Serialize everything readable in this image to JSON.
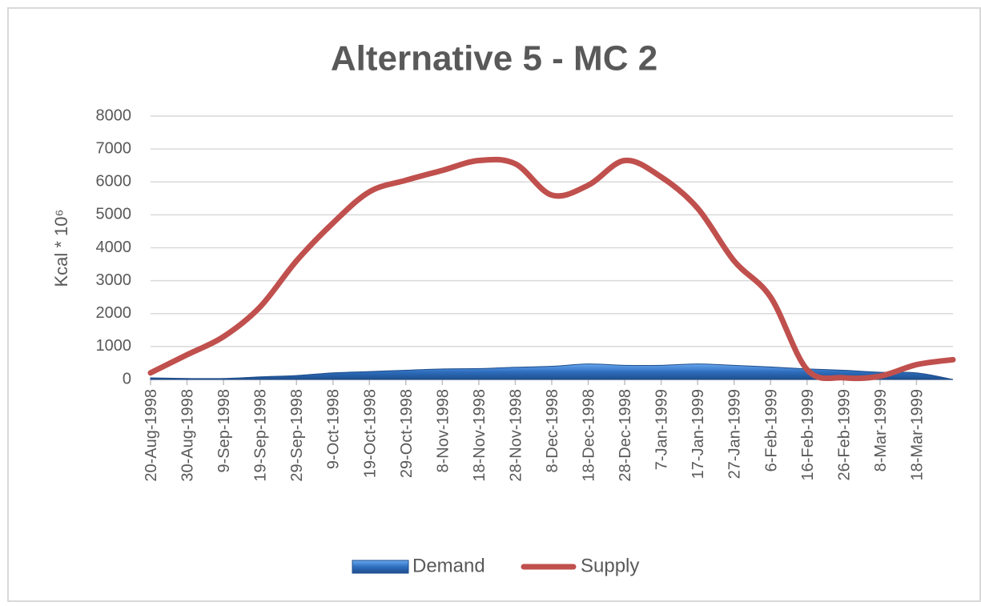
{
  "chart_data": {
    "type": "line",
    "title": "Alternative 5 - MC 2",
    "y_label": "Kcal * 10⁶",
    "categories": [
      "20-Aug-1998",
      "30-Aug-1998",
      "9-Sep-1998",
      "19-Sep-1998",
      "29-Sep-1998",
      "9-Oct-1998",
      "19-Oct-1998",
      "29-Oct-1998",
      "8-Nov-1998",
      "18-Nov-1998",
      "28-Nov-1998",
      "8-Dec-1998",
      "18-Dec-1998",
      "28-Dec-1998",
      "7-Jan-1999",
      "17-Jan-1999",
      "27-Jan-1999",
      "6-Feb-1999",
      "16-Feb-1999",
      "26-Feb-1999",
      "8-Mar-1999",
      "18-Mar-1999",
      null
    ],
    "series": [
      {
        "name": "Demand",
        "color": "#3f7fcf",
        "style": "area",
        "values": [
          50,
          30,
          30,
          80,
          120,
          200,
          240,
          280,
          320,
          330,
          370,
          400,
          470,
          430,
          430,
          470,
          430,
          380,
          320,
          280,
          220,
          200,
          0
        ]
      },
      {
        "name": "Supply",
        "color": "#c0504d",
        "style": "line",
        "values": [
          200,
          750,
          1300,
          2200,
          3600,
          4750,
          5700,
          6050,
          6350,
          6650,
          6550,
          5600,
          5900,
          6650,
          6150,
          5200,
          3600,
          2500,
          300,
          50,
          100,
          450,
          600
        ]
      }
    ],
    "ylim": [
      0,
      8000
    ],
    "yticks": [
      0,
      1000,
      2000,
      3000,
      4000,
      5000,
      6000,
      7000,
      8000
    ],
    "grid": true,
    "legend": "bottom"
  }
}
